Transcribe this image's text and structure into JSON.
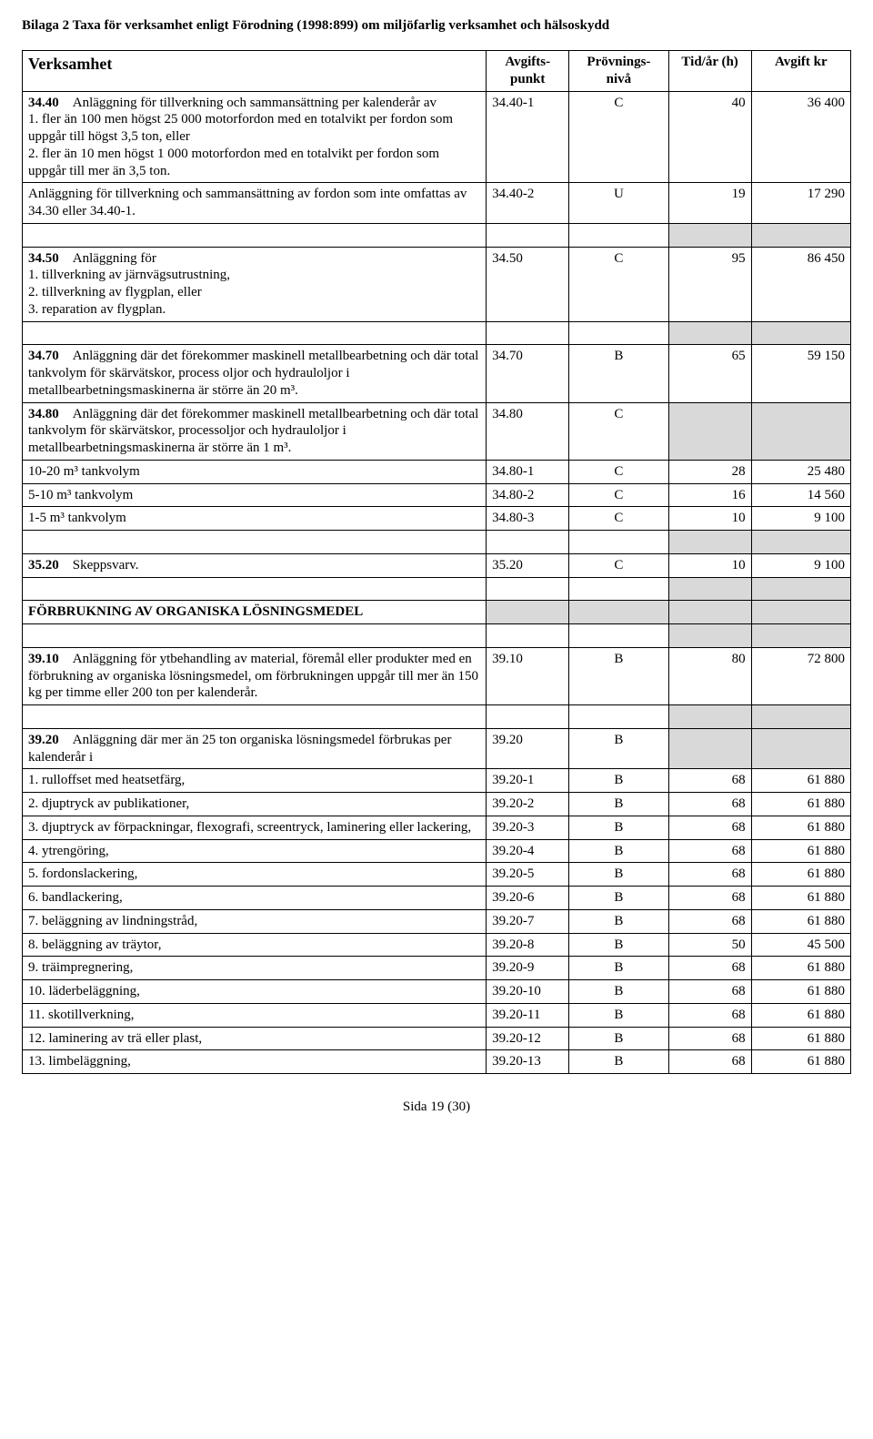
{
  "page_title": "Bilaga 2 Taxa för verksamhet enligt Förodning (1998:899) om miljöfarlig verksamhet och hälsoskydd",
  "header": {
    "col1": "Verksamhet",
    "col2": "Avgifts-punkt",
    "col3": "Prövnings-nivå",
    "col4": "Tid/år (h)",
    "col5": "Avgift kr"
  },
  "rows": [
    {
      "desc": "<b>34.40</b> Anläggning för tillverkning och sammansättning per kalenderår av\n1. fler än 100 men högst 25 000 motorfordon med en totalvikt per fordon som uppgår till högst 3,5 ton, eller\n2. fler än 10 men högst 1 000 motorfordon med en totalvikt per fordon som uppgår till mer än 3,5 ton.",
      "pt": "34.40-1",
      "niv": "C",
      "tid": "40",
      "avg": "36 400"
    },
    {
      "desc": "Anläggning för tillverkning och sammansättning av fordon som inte omfattas av 34.30 eller 34.40-1.",
      "pt": "34.40-2",
      "niv": "U",
      "tid": "19",
      "avg": "17 290"
    },
    {
      "spacer": true
    },
    {
      "desc": "<b>34.50</b> Anläggning för\n1. tillverkning av järnvägsutrustning,\n2. tillverkning av flygplan, eller\n3. reparation av flygplan.",
      "pt": "34.50",
      "niv": "C",
      "tid": "95",
      "avg": "86 450"
    },
    {
      "spacer": true
    },
    {
      "desc": "<b>34.70</b> Anläggning där det förekommer maskinell metallbearbetning och där total tankvolym för skärvätskor, process oljor och hydrauloljor i metallbearbetningsmaskinerna är större än 20 m³.",
      "pt": "34.70",
      "niv": "B",
      "tid": "65",
      "avg": "59 150"
    },
    {
      "desc": "<b>34.80</b> Anläggning där det förekommer maskinell metallbearbetning och där total tankvolym för skärvätskor, processoljor och hydrauloljor i metallbearbetningsmaskinerna är större än 1 m³.",
      "pt": "34.80",
      "niv": "C",
      "tid": "",
      "avg": "",
      "shaded": true
    },
    {
      "desc": "10-20 m³ tankvolym",
      "pt": "34.80-1",
      "niv": "C",
      "tid": "28",
      "avg": "25 480"
    },
    {
      "desc": "5-10 m³ tankvolym",
      "pt": "34.80-2",
      "niv": "C",
      "tid": "16",
      "avg": "14 560"
    },
    {
      "desc": "1-5 m³ tankvolym",
      "pt": "34.80-3",
      "niv": "C",
      "tid": "10",
      "avg": "9 100"
    },
    {
      "spacer": true
    },
    {
      "desc": "<b>35.20</b> Skeppsvarv.",
      "pt": "35.20",
      "niv": "C",
      "tid": "10",
      "avg": "9 100"
    },
    {
      "spacer": true
    },
    {
      "section": "FÖRBRUKNING AV ORGANISKA LÖSNINGSMEDEL"
    },
    {
      "spacer": true
    },
    {
      "desc": "<b>39.10</b> Anläggning för ytbehandling av material, föremål eller produkter med en förbrukning av organiska lösningsmedel, om förbrukningen uppgår till mer än 150 kg per timme eller 200 ton per kalenderår.",
      "pt": "39.10",
      "niv": "B",
      "tid": "80",
      "avg": "72 800"
    },
    {
      "spacer": true
    },
    {
      "desc": "<b>39.20</b> Anläggning där mer än 25 ton organiska lösningsmedel förbrukas per kalenderår i",
      "pt": "39.20",
      "niv": "B",
      "tid": "",
      "avg": "",
      "shaded": true
    },
    {
      "desc": "1. rulloffset med heatsetfärg,",
      "pt": "39.20-1",
      "niv": "B",
      "tid": "68",
      "avg": "61 880"
    },
    {
      "desc": "2. djuptryck av publikationer,",
      "pt": "39.20-2",
      "niv": "B",
      "tid": "68",
      "avg": "61 880"
    },
    {
      "desc": "3. djuptryck av förpackningar, flexografi, screentryck, laminering eller lackering,",
      "pt": "39.20-3",
      "niv": "B",
      "tid": "68",
      "avg": "61 880"
    },
    {
      "desc": "4. ytrengöring,",
      "pt": "39.20-4",
      "niv": "B",
      "tid": "68",
      "avg": "61 880"
    },
    {
      "desc": "5. fordonslackering,",
      "pt": "39.20-5",
      "niv": "B",
      "tid": "68",
      "avg": "61 880"
    },
    {
      "desc": "6. bandlackering,",
      "pt": "39.20-6",
      "niv": "B",
      "tid": "68",
      "avg": "61 880"
    },
    {
      "desc": "7. beläggning av lindningstråd,",
      "pt": "39.20-7",
      "niv": "B",
      "tid": "68",
      "avg": "61 880"
    },
    {
      "desc": "8. beläggning av träytor,",
      "pt": "39.20-8",
      "niv": "B",
      "tid": "50",
      "avg": "45 500"
    },
    {
      "desc": "9. träimpregnering,",
      "pt": "39.20-9",
      "niv": "B",
      "tid": "68",
      "avg": "61 880"
    },
    {
      "desc": "10. läderbeläggning,",
      "pt": "39.20-10",
      "niv": "B",
      "tid": "68",
      "avg": "61 880"
    },
    {
      "desc": "11. skotillverkning,",
      "pt": "39.20-11",
      "niv": "B",
      "tid": "68",
      "avg": "61 880"
    },
    {
      "desc": "12. laminering av trä eller plast,",
      "pt": "39.20-12",
      "niv": "B",
      "tid": "68",
      "avg": "61 880"
    },
    {
      "desc": "13. limbeläggning,",
      "pt": "39.20-13",
      "niv": "B",
      "tid": "68",
      "avg": "61 880"
    }
  ],
  "footer": "Sida 19 (30)"
}
